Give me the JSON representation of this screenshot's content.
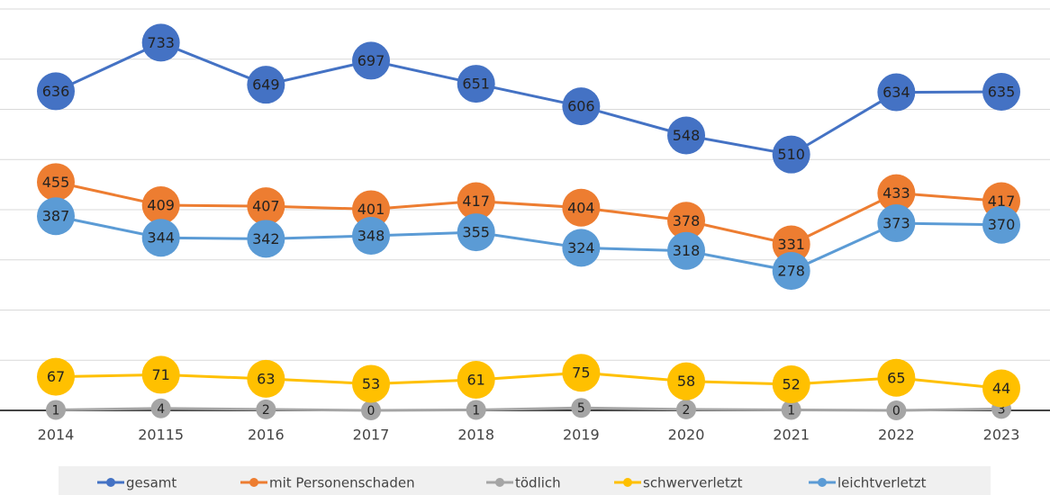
{
  "chart_data": {
    "type": "line",
    "categories": [
      "2014",
      "20115",
      "2016",
      "2017",
      "2018",
      "2019",
      "2020",
      "2021",
      "2022",
      "2023"
    ],
    "series": [
      {
        "name": "gesamt",
        "color": "#4472c4",
        "values": [
          636,
          733,
          649,
          697,
          651,
          606,
          548,
          510,
          634,
          635
        ]
      },
      {
        "name": "mit Personenschaden",
        "color": "#ed7d31",
        "values": [
          455,
          409,
          407,
          401,
          417,
          404,
          378,
          331,
          433,
          417
        ]
      },
      {
        "name": "tödlich",
        "color": "#a5a5a5",
        "values": [
          1,
          4,
          2,
          0,
          1,
          5,
          2,
          1,
          0,
          3
        ]
      },
      {
        "name": "schwerverletzt",
        "color": "#ffc000",
        "values": [
          67,
          71,
          63,
          53,
          61,
          75,
          58,
          52,
          65,
          44
        ]
      },
      {
        "name": "leichtverletzt",
        "color": "#5b9bd5",
        "values": [
          387,
          344,
          342,
          348,
          355,
          324,
          318,
          278,
          373,
          370
        ]
      }
    ],
    "ylim": [
      0,
      800
    ],
    "yticks": [
      0,
      100,
      200,
      300,
      400,
      500,
      600,
      700,
      800
    ],
    "grid": true,
    "legend": "bottom"
  }
}
